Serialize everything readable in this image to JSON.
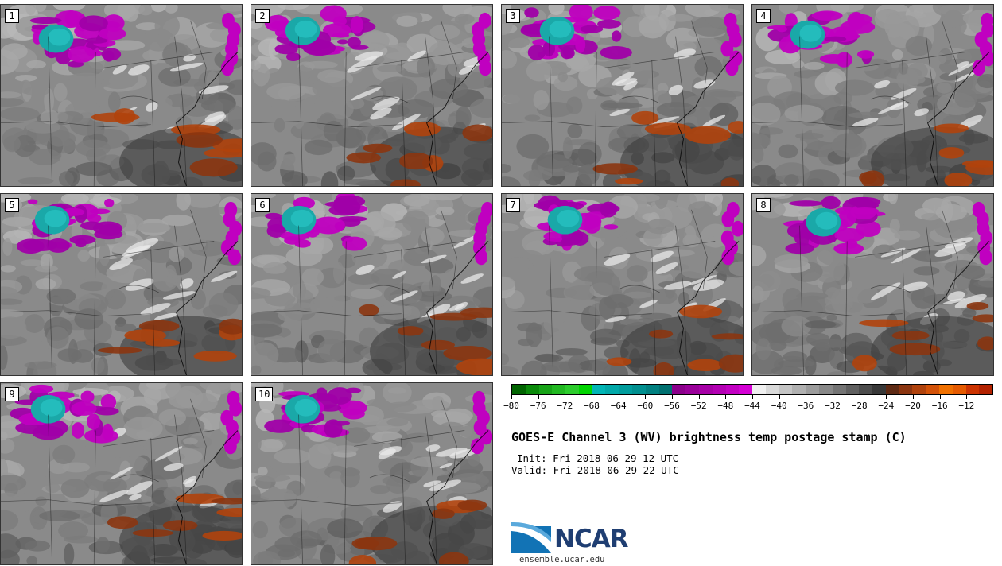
{
  "panels": [
    {
      "label": "1"
    },
    {
      "label": "2"
    },
    {
      "label": "3"
    },
    {
      "label": "4"
    },
    {
      "label": "5"
    },
    {
      "label": "6"
    },
    {
      "label": "7"
    },
    {
      "label": "8"
    },
    {
      "label": "9"
    },
    {
      "label": "10"
    }
  ],
  "colorbar": {
    "colors": [
      "#006400",
      "#0a8a0a",
      "#17a317",
      "#21b821",
      "#2ccc2c",
      "#00d400",
      "#00b5b5",
      "#00a8a8",
      "#009c9c",
      "#008f8f",
      "#008080",
      "#007070",
      "#8b008b",
      "#990099",
      "#a600a6",
      "#b300b3",
      "#c200c2",
      "#d400d4",
      "#f0f0f0",
      "#d9d9d9",
      "#c4c4c4",
      "#b0b0b0",
      "#9c9c9c",
      "#888888",
      "#747474",
      "#606060",
      "#4c4c4c",
      "#383838",
      "#5e2a14",
      "#8b3510",
      "#b0420c",
      "#d35208",
      "#f07000",
      "#e55a00",
      "#cc3300",
      "#b32200"
    ],
    "ticks": [
      "−80",
      "−76",
      "−72",
      "−68",
      "−64",
      "−60",
      "−56",
      "−52",
      "−48",
      "−44",
      "−40",
      "−36",
      "−32",
      "−28",
      "−24",
      "−20",
      "−16",
      "−12"
    ]
  },
  "title": "GOES-E Channel 3 (WV) brightness temp postage stamp (C)",
  "init": "Init: Fri 2018-06-29 12 UTC",
  "valid": "Valid: Fri 2018-06-29 22 UTC",
  "logo": {
    "name": "NCAR",
    "url": "ensemble.ucar.edu"
  }
}
